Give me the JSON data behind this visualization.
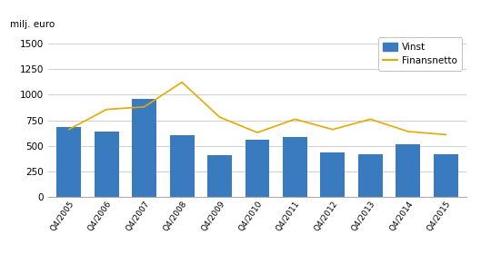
{
  "categories": [
    "Q4/2005",
    "Q4/2006",
    "Q4/2007",
    "Q4/2008",
    "Q4/2009",
    "Q4/2010",
    "Q4/2011",
    "Q4/2012",
    "Q4/2013",
    "Q4/2014",
    "Q4/2015"
  ],
  "bar_values": [
    680,
    640,
    960,
    600,
    410,
    560,
    590,
    440,
    420,
    520,
    415
  ],
  "line_values": [
    660,
    855,
    880,
    1120,
    780,
    630,
    760,
    660,
    760,
    640,
    610
  ],
  "bar_color": "#3a7abf",
  "line_color": "#e8a800",
  "ylabel": "milj. euro",
  "ylim": [
    0,
    1600
  ],
  "yticks": [
    0,
    250,
    500,
    750,
    1000,
    1250,
    1500
  ],
  "legend_vinst": "Vinst",
  "legend_finansnetto": "Finansnetto",
  "grid_color": "#d0d0d0"
}
